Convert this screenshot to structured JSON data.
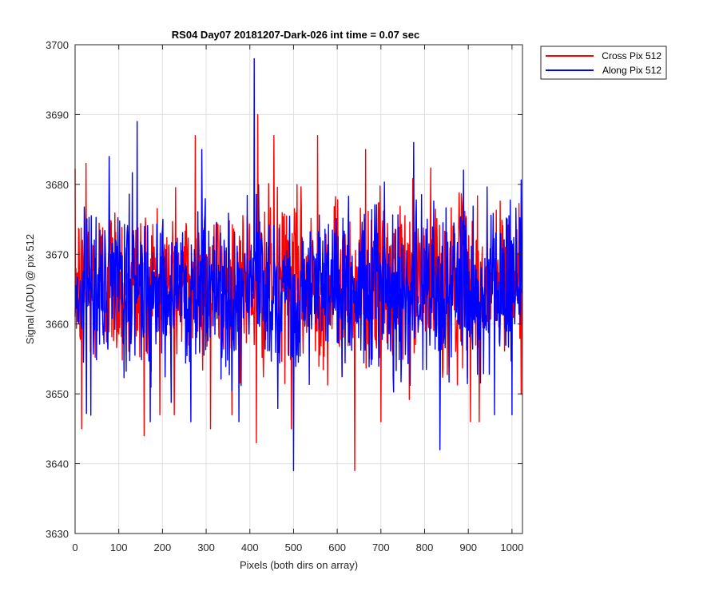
{
  "chart_data": {
    "type": "line",
    "title": "RS04 Day07 20181207-Dark-026 int time = 0.07 sec",
    "xlabel": "Pixels (both dirs on array)",
    "ylabel": "Signal (ADU) @ pix 512",
    "xlim": [
      0,
      1024
    ],
    "ylim": [
      3630,
      3700
    ],
    "xticks": [
      0,
      100,
      200,
      300,
      400,
      500,
      600,
      700,
      800,
      900,
      1000
    ],
    "yticks": [
      3630,
      3640,
      3650,
      3660,
      3670,
      3680,
      3690,
      3700
    ],
    "grid": true,
    "legend_position": "outside-top-right",
    "series": [
      {
        "name": "Cross Pix 512",
        "color": "#ff0000",
        "mean": 3666,
        "noise_std": 6.5,
        "num_points": 1024,
        "notable_points": [
          [
            25,
            3683
          ],
          [
            15,
            3645
          ],
          [
            158,
            3644
          ],
          [
            227,
            3647
          ],
          [
            275,
            3687
          ],
          [
            310,
            3645
          ],
          [
            415,
            3643
          ],
          [
            418,
            3690
          ],
          [
            455,
            3687
          ],
          [
            495,
            3645
          ],
          [
            555,
            3687
          ],
          [
            640,
            3639
          ],
          [
            665,
            3685
          ],
          [
            700,
            3646
          ],
          [
            905,
            3646
          ],
          [
            925,
            3646
          ]
        ]
      },
      {
        "name": "Along Pix 512",
        "color": "#0000ff",
        "mean": 3665,
        "noise_std": 6.5,
        "num_points": 1024,
        "notable_points": [
          [
            142,
            3689
          ],
          [
            410,
            3698
          ],
          [
            500,
            3639
          ],
          [
            265,
            3646
          ],
          [
            290,
            3685
          ],
          [
            375,
            3646
          ],
          [
            835,
            3642
          ],
          [
            775,
            3686
          ],
          [
            960,
            3647
          ],
          [
            1000,
            3647
          ]
        ]
      }
    ]
  }
}
